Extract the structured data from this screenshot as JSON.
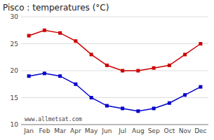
{
  "chart_data": {
    "type": "line",
    "title": "Pisco : temperatures (°C)",
    "categories": [
      "Jan",
      "Feb",
      "Mar",
      "Apr",
      "May",
      "Jun",
      "Jul",
      "Aug",
      "Sep",
      "Oct",
      "Nov",
      "Dec"
    ],
    "series": [
      {
        "color": "#cc0000",
        "marker": "square",
        "values": [
          26.5,
          27.5,
          27.0,
          25.5,
          23.0,
          21.0,
          20.0,
          20.0,
          20.5,
          21.0,
          23.0,
          25.0
        ]
      },
      {
        "color": "#0000cc",
        "marker": "square",
        "values": [
          19.0,
          19.5,
          19.0,
          17.5,
          15.0,
          13.5,
          13.0,
          12.5,
          13.0,
          14.0,
          15.5,
          17.0
        ]
      }
    ],
    "ylim": [
      10,
      30
    ],
    "yticks": [
      10,
      15,
      20,
      25,
      30
    ],
    "grid": true,
    "annotations": [
      "www.allmetsat.com"
    ]
  }
}
